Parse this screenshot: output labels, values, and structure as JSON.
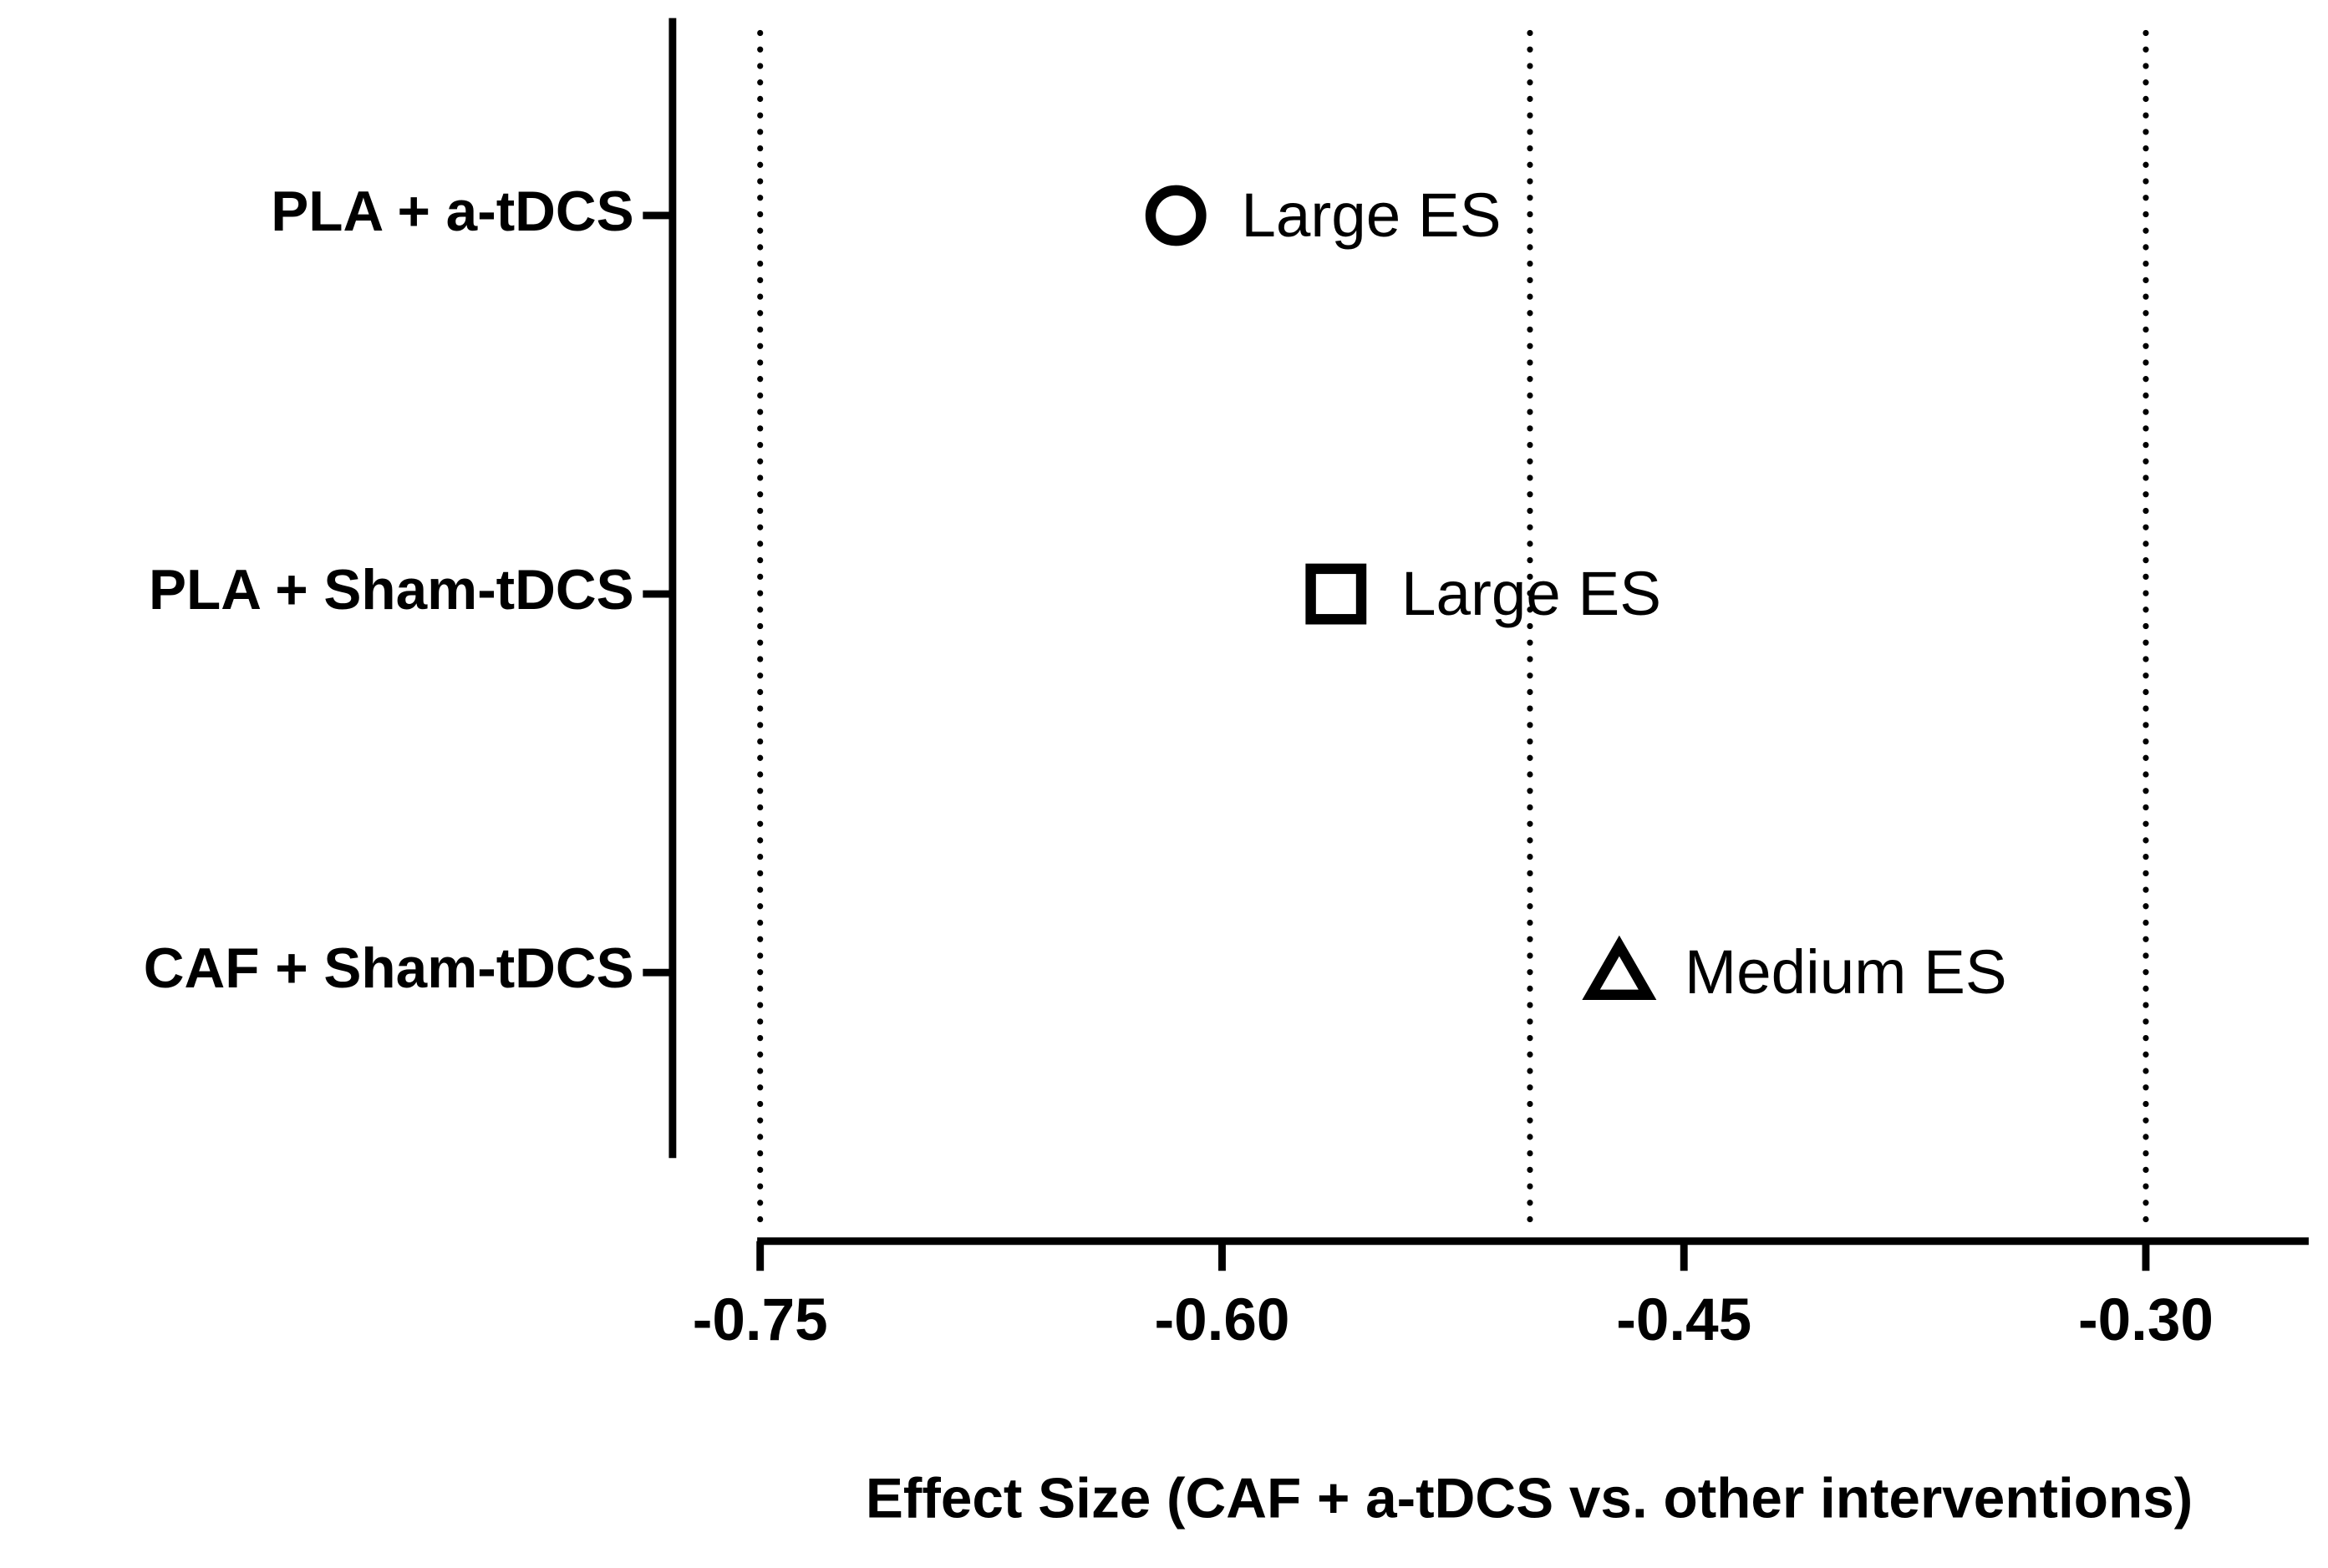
{
  "chart_data": {
    "type": "dot",
    "xlabel": "Effect Size  (CAF + a-tDCS vs. other interventions)",
    "categories": [
      "PLA + a-tDCS",
      "PLA + Sham-tDCS",
      "CAF + Sham-tDCS"
    ],
    "values": [
      -0.615,
      -0.563,
      -0.471
    ],
    "markers": [
      "circle",
      "square",
      "triangle"
    ],
    "annotations": [
      "Large ES",
      "Large ES",
      "Medium ES"
    ],
    "color": "#000000",
    "xlim": [
      -0.75,
      -0.25
    ],
    "xticks": [
      -0.75,
      {
        "value": -0.6,
        "label": "-0.60"
      },
      -0.45,
      {
        "value": -0.3,
        "label": "-0.30"
      }
    ],
    "reference_lines": [
      -0.75,
      -0.5,
      -0.3
    ]
  }
}
